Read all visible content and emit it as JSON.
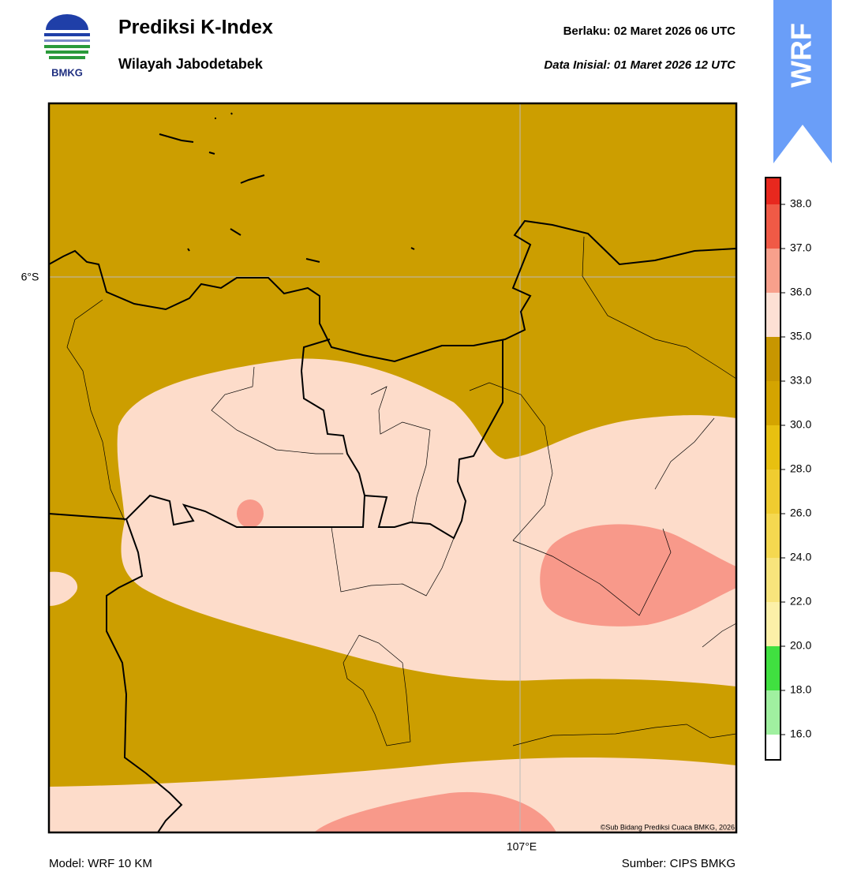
{
  "header": {
    "logo_text": "BMKG",
    "title": "Prediksi K-Index",
    "subtitle": "Wilayah Jabodetabek",
    "valid": "Berlaku:  02 Maret 2026 06 UTC",
    "initial": "Data Inisial:  01 Maret 2026 12 UTC",
    "badge": "WRF"
  },
  "map": {
    "lat_label": "6°S",
    "lon_label": "107°E",
    "credit": "©Sub Bidang Prediksi Cuaca BMKG, 2026"
  },
  "colorbar": {
    "ticks": [
      {
        "value": 38,
        "label": "38.0"
      },
      {
        "value": 37,
        "label": "37.0"
      },
      {
        "value": 36,
        "label": "36.0"
      },
      {
        "value": 35,
        "label": "35.0"
      },
      {
        "value": 33,
        "label": "33.0"
      },
      {
        "value": 30,
        "label": "30.0"
      },
      {
        "value": 28,
        "label": "28.0"
      },
      {
        "value": 26,
        "label": "26.0"
      },
      {
        "value": 24,
        "label": "24.0"
      },
      {
        "value": 22,
        "label": "22.0"
      },
      {
        "value": 20,
        "label": "20.0"
      },
      {
        "value": 18,
        "label": "18.0"
      },
      {
        "value": 16,
        "label": "16.0"
      }
    ],
    "colors": [
      "#e8281e",
      "#f05a46",
      "#f8a08c",
      "#fde0d4",
      "#c89600",
      "#d4a400",
      "#e8c010",
      "#f0cc30",
      "#f5d850",
      "#f8e47c",
      "#fcf0a8",
      "#40e040",
      "#a0f0a0",
      "#ffffff"
    ]
  },
  "footer": {
    "model": "Model: WRF 10 KM",
    "source": "Sumber: CIPS BMKG"
  }
}
